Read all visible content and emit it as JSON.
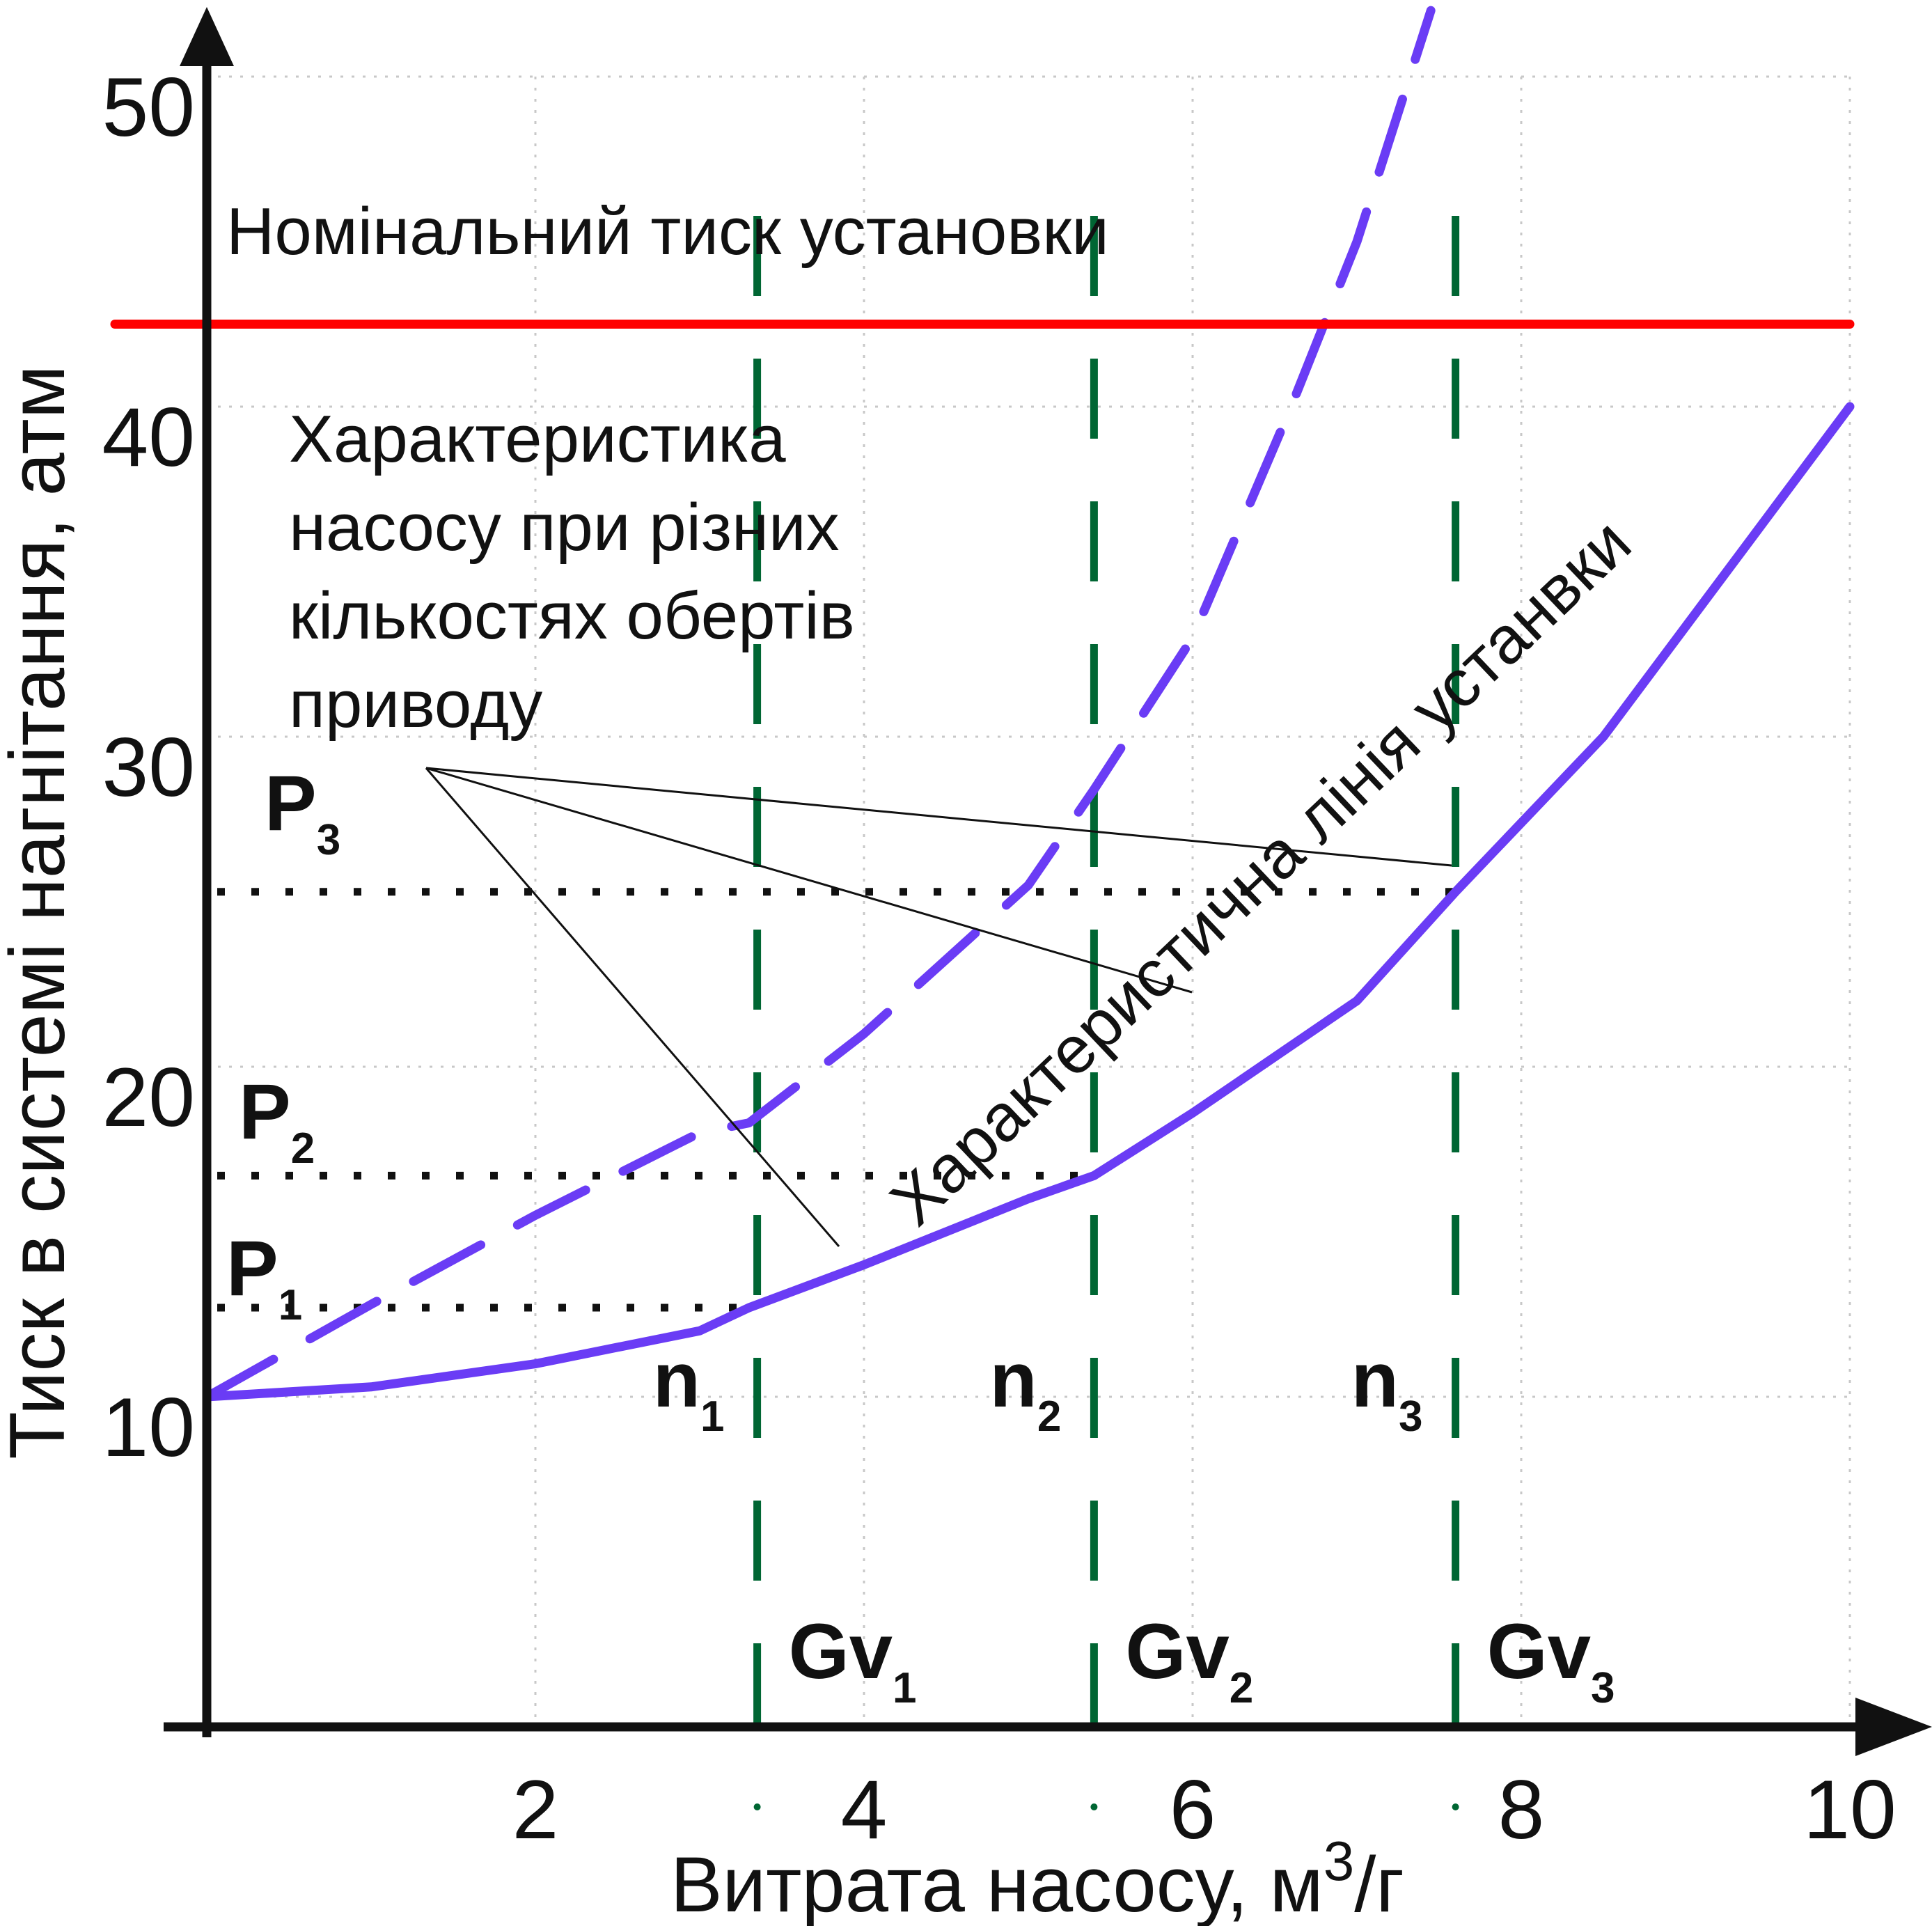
{
  "chart_data": {
    "type": "line",
    "xlabel_main": "Витрата насосу, м",
    "xlabel_sup": "3",
    "xlabel_tail": "/г",
    "ylabel": "Тиск в системі нагнітання, атм",
    "xlim": [
      0,
      10
    ],
    "ylim": [
      0,
      50
    ],
    "x_ticks": [
      "2",
      "4",
      "6",
      "8",
      "10"
    ],
    "y_ticks": [
      "10",
      "20",
      "30",
      "40",
      "50"
    ],
    "grid": true,
    "nominal_pressure": {
      "y": 42.5,
      "label": "Номінальний тиск установки",
      "color": "#ff0000"
    },
    "series": [
      {
        "name": "Характеристична лінія установки",
        "style": "solid",
        "color": "#6a3cf5",
        "points": [
          [
            0,
            10
          ],
          [
            1,
            10.3
          ],
          [
            2,
            11
          ],
          [
            3,
            12
          ],
          [
            3.3,
            12.7
          ],
          [
            4,
            14
          ],
          [
            5,
            16
          ],
          [
            5.4,
            16.7
          ],
          [
            6,
            18.6
          ],
          [
            7,
            22
          ],
          [
            7.6,
            25.3
          ],
          [
            8.5,
            30
          ],
          [
            9.4,
            36
          ],
          [
            10,
            40
          ]
        ]
      },
      {
        "name": "Характеристика насосу при різних кількостях обертів приводу",
        "style": "dashed",
        "color": "#6a3cf5",
        "points": [
          [
            0,
            10
          ],
          [
            1,
            12.8
          ],
          [
            2,
            15.5
          ],
          [
            3,
            18
          ],
          [
            3.3,
            18.3
          ],
          [
            4,
            21
          ],
          [
            5,
            25.5
          ],
          [
            5.4,
            28.4
          ],
          [
            6,
            33
          ],
          [
            6.6,
            40
          ],
          [
            7.0,
            45
          ],
          [
            7.45,
            52
          ]
        ]
      }
    ],
    "speed_lines": [
      {
        "x": 3.35,
        "label": "n",
        "sub": "1",
        "gv": "Gv",
        "gv_sub": "1"
      },
      {
        "x": 5.4,
        "label": "n",
        "sub": "2",
        "gv": "Gv",
        "gv_sub": "2"
      },
      {
        "x": 7.6,
        "label": "n",
        "sub": "3",
        "gv": "Gv",
        "gv_sub": "3"
      }
    ],
    "pressure_levels": [
      {
        "y": 12.7,
        "label": "P",
        "sub": "1"
      },
      {
        "y": 16.7,
        "label": "P",
        "sub": "2"
      },
      {
        "y": 25.3,
        "label": "P",
        "sub": "3"
      }
    ],
    "annotation_pump": [
      "Характеристика",
      "насосу при різних",
      "кількостях обертів",
      "приводу"
    ],
    "annotation_system": "Характеристична лінія устанвки"
  }
}
